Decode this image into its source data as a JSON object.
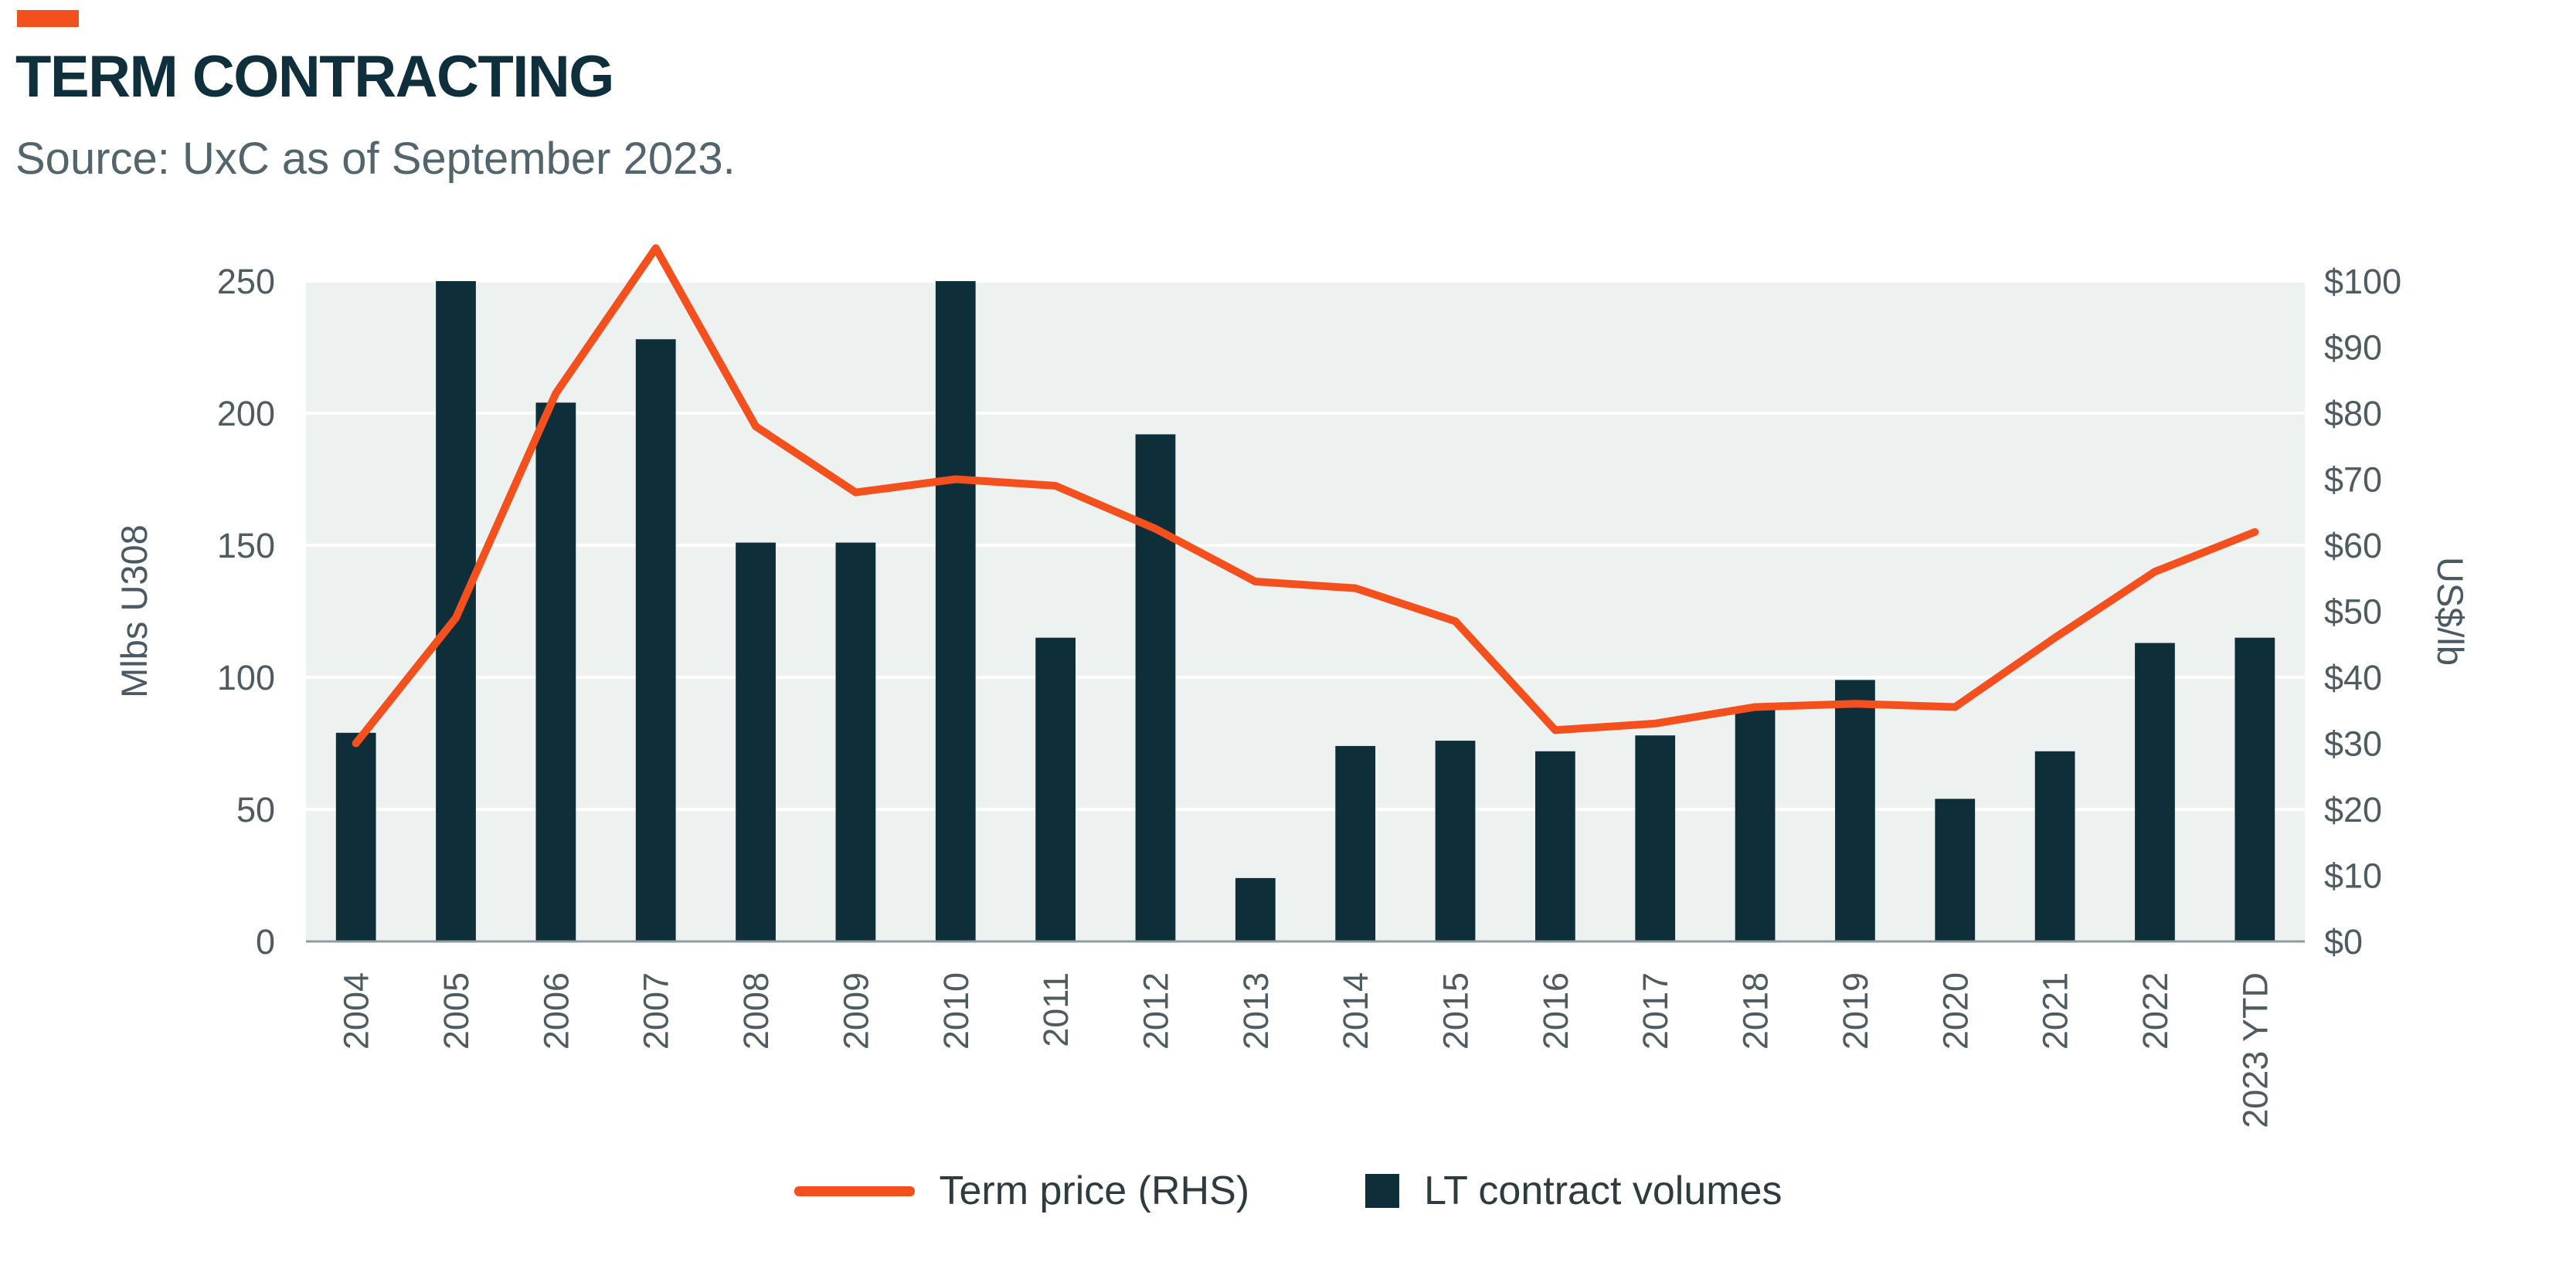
{
  "header": {
    "title": "TERM CONTRACTING",
    "source": "Source: UxC as of September 2023.",
    "accent_color": "#f4501e"
  },
  "legend": {
    "term_price": {
      "label": "Term price (RHS)",
      "color": "#f4501e"
    },
    "lt_volumes": {
      "label": "LT contract volumes",
      "color": "#0e2e3a"
    }
  },
  "chart_data": {
    "type": "combo",
    "title": "TERM CONTRACTING",
    "source": "Source: UxC as of September 2023.",
    "categories": [
      "2004",
      "2005",
      "2006",
      "2007",
      "2008",
      "2009",
      "2010",
      "2011",
      "2012",
      "2013",
      "2014",
      "2015",
      "2016",
      "2017",
      "2018",
      "2019",
      "2020",
      "2021",
      "2022",
      "2023 YTD"
    ],
    "series": [
      {
        "name": "LT contract volumes",
        "type": "bar",
        "axis": "left",
        "color": "#0e2e3a",
        "values": [
          79,
          250,
          204,
          228,
          151,
          151,
          250,
          115,
          192,
          24,
          74,
          76,
          72,
          78,
          88,
          99,
          54,
          72,
          113,
          115
        ]
      },
      {
        "name": "Term price (RHS)",
        "type": "line",
        "axis": "right",
        "color": "#f4501e",
        "values": [
          30,
          49,
          83,
          105,
          78,
          68,
          70,
          69,
          62.5,
          54.5,
          53.5,
          48.5,
          32,
          33,
          35.5,
          36,
          35.5,
          46,
          56,
          62
        ]
      }
    ],
    "left_axis": {
      "label": "Mlbs U308",
      "min": 0,
      "max": 250,
      "ticks": [
        0,
        50,
        100,
        150,
        200,
        250
      ]
    },
    "right_axis": {
      "label": "US$/lb",
      "min": 0,
      "max": 100,
      "tick_values": [
        0,
        10,
        20,
        30,
        40,
        50,
        60,
        70,
        80,
        90,
        100
      ],
      "tick_labels": [
        "$0",
        "$10",
        "$20",
        "$30",
        "$40",
        "$50",
        "$60",
        "$70",
        "$80",
        "$90",
        "$100"
      ]
    },
    "plot_bg": "#edf1f0",
    "grid_color": "#ffffff",
    "grid": true,
    "legend_position": "bottom"
  }
}
